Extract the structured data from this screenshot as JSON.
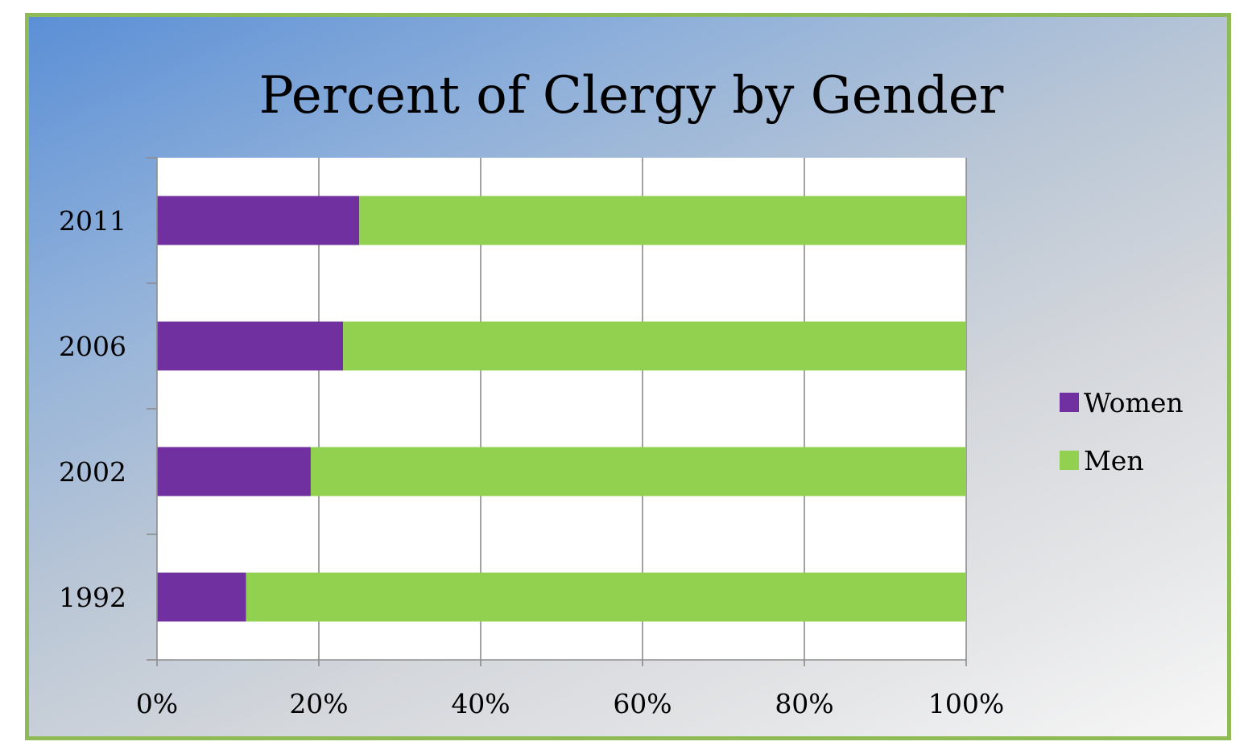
{
  "chart_data": {
    "type": "bar",
    "orientation": "horizontal",
    "stacking": "percent",
    "title": "Percent of Clergy by Gender",
    "categories": [
      "1992",
      "2002",
      "2006",
      "2011"
    ],
    "series": [
      {
        "name": "Women",
        "color": "#7030a0",
        "values": [
          11,
          19,
          23,
          25
        ]
      },
      {
        "name": "Men",
        "color": "#92d050",
        "values": [
          89,
          81,
          77,
          75
        ]
      }
    ],
    "xlim": [
      0,
      100
    ],
    "x_ticks": [
      "0%",
      "20%",
      "40%",
      "60%",
      "80%",
      "100%"
    ],
    "grid": true,
    "legend_position": "right"
  }
}
